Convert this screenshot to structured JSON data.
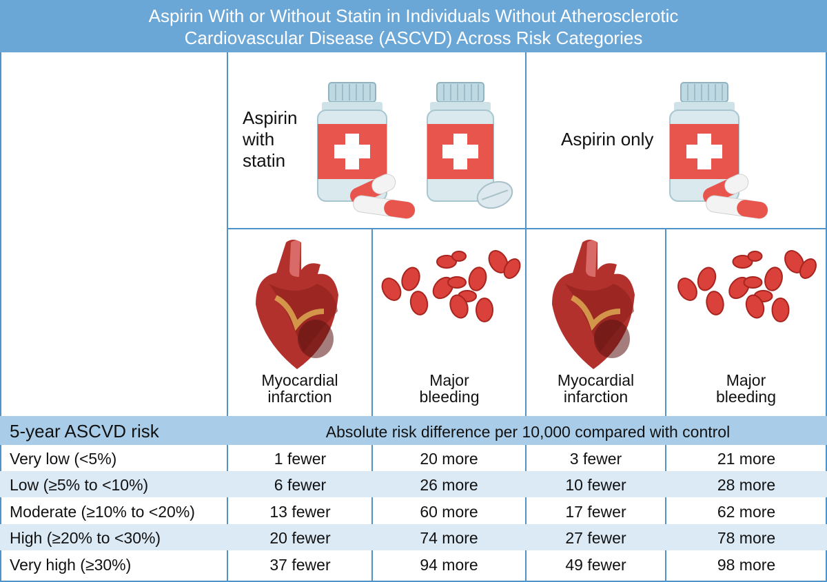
{
  "title": {
    "line1": "Aspirin With or Without Statin in Individuals Without Atherosclerotic",
    "line2": "Cardiovascular Disease (ASCVD) Across Risk Categories"
  },
  "groups": {
    "statin": {
      "label_lines": [
        "Aspirin",
        "with",
        "statin"
      ]
    },
    "aspirin_only": {
      "label": "Aspirin only"
    }
  },
  "outcomes": {
    "mi": [
      "Myocardial",
      "infarction"
    ],
    "bleeding": [
      "Major",
      "bleeding"
    ]
  },
  "table": {
    "risk_header": "5-year ASCVD risk",
    "diff_header": "Absolute risk difference per 10,000 compared with control",
    "rows": [
      {
        "risk": "Very low (<5%)",
        "values": [
          "1 fewer",
          "20 more",
          "3 fewer",
          "21 more"
        ]
      },
      {
        "risk": "Low (≥5% to <10%)",
        "values": [
          "6 fewer",
          "26 more",
          "10 fewer",
          "28 more"
        ]
      },
      {
        "risk": "Moderate (≥10% to <20%)",
        "values": [
          "13 fewer",
          "60 more",
          "17 fewer",
          "62 more"
        ]
      },
      {
        "risk": "High (≥20% to <30%)",
        "values": [
          "20 fewer",
          "74 more",
          "27 fewer",
          "78 more"
        ]
      },
      {
        "risk": "Very high (≥30%)",
        "values": [
          "37 fewer",
          "94 more",
          "49 fewer",
          "98 more"
        ]
      }
    ]
  },
  "colors": {
    "title_bar": "#6aa6d6",
    "grid": "#4f93c9",
    "header_band": "#a9cde9",
    "row_alt": "#dceaf5",
    "bottle_label": "#e8554c",
    "blood_cell": "#d9413a"
  },
  "icons": {
    "bottle": "medicine-bottle-icon",
    "capsule": "capsule-icon",
    "tablet": "tablet-icon",
    "heart": "heart-icon",
    "blood": "red-blood-cell-icon"
  }
}
